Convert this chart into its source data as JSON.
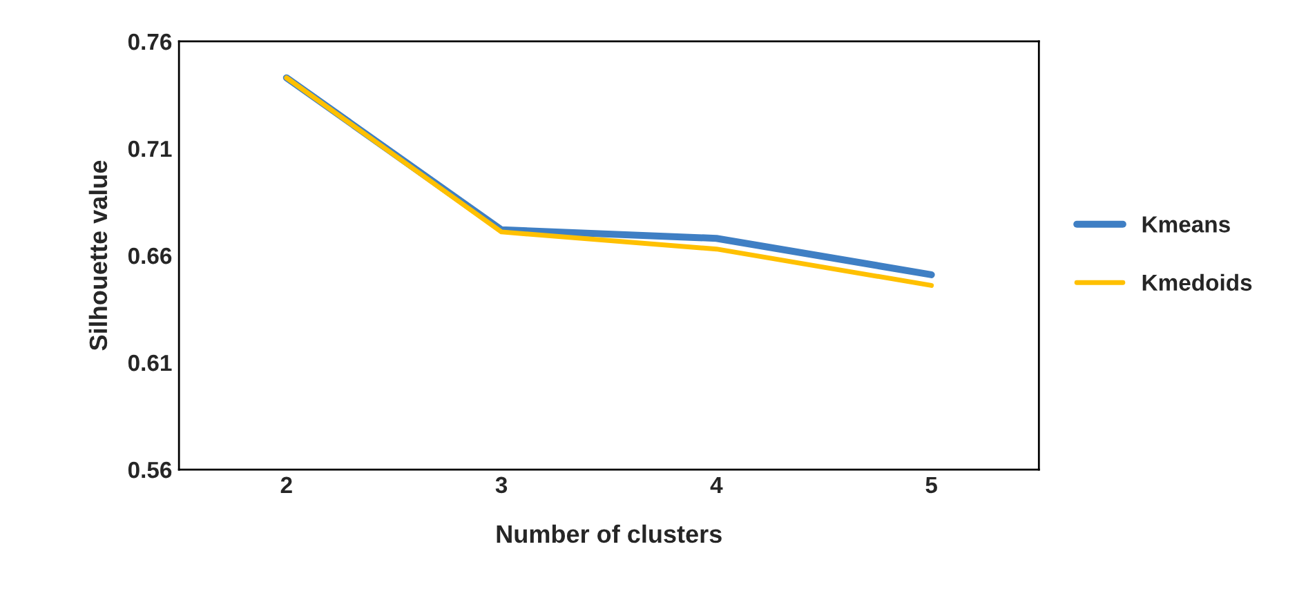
{
  "chart_data": {
    "type": "line",
    "xlabel": "Number of clusters",
    "ylabel": "Silhouette value",
    "categories": [
      "2",
      "3",
      "4",
      "5"
    ],
    "series": [
      {
        "name": "Kmeans",
        "color": "#3f7fc4",
        "values": [
          0.743,
          0.672,
          0.668,
          0.651
        ]
      },
      {
        "name": "Kmedoids",
        "color": "#ffc000",
        "values": [
          0.743,
          0.671,
          0.663,
          0.646
        ]
      }
    ],
    "ylim": [
      0.56,
      0.76
    ],
    "yticks": [
      {
        "value": 0.56,
        "label": "0.56"
      },
      {
        "value": 0.61,
        "label": "0.61"
      },
      {
        "value": 0.66,
        "label": "0.66"
      },
      {
        "value": 0.71,
        "label": "0.71"
      },
      {
        "value": 0.76,
        "label": "0.76"
      }
    ],
    "grid": false,
    "legend": "right",
    "marker": "none",
    "line_style": "solid"
  }
}
